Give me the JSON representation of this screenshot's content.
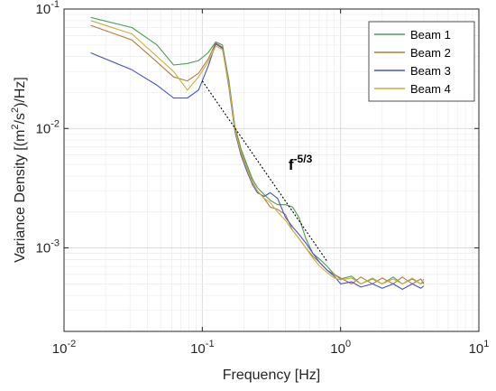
{
  "chart_data": {
    "type": "line",
    "xlabel": "Frequency [Hz]",
    "ylabel_parts": {
      "pre": "Variance Density [(m",
      "sup1": "2",
      "mid": "/s",
      "sup2": "2",
      "post": ")/Hz]"
    },
    "x_scale": "log",
    "y_scale": "log",
    "xlim": [
      0.01,
      10
    ],
    "ylim": [
      0.0002,
      0.1
    ],
    "grid": true,
    "minor_grid": true,
    "legend_position": "top-right",
    "x_ticks": [
      {
        "value": 0.01,
        "base": "10",
        "exp": "-2"
      },
      {
        "value": 0.1,
        "base": "10",
        "exp": "-1"
      },
      {
        "value": 1,
        "base": "10",
        "exp": "0"
      },
      {
        "value": 10,
        "base": "10",
        "exp": "1"
      }
    ],
    "y_ticks": [
      {
        "value": 0.001,
        "base": "10",
        "exp": "-3"
      },
      {
        "value": 0.01,
        "base": "10",
        "exp": "-2"
      },
      {
        "value": 0.1,
        "base": "10",
        "exp": "-1"
      }
    ],
    "series": [
      {
        "name": "Beam 1",
        "color": "#4f9a5b",
        "points": [
          [
            0.0156,
            0.085
          ],
          [
            0.031,
            0.07
          ],
          [
            0.047,
            0.05
          ],
          [
            0.062,
            0.034
          ],
          [
            0.078,
            0.035
          ],
          [
            0.094,
            0.037
          ],
          [
            0.11,
            0.043
          ],
          [
            0.125,
            0.053
          ],
          [
            0.14,
            0.05
          ],
          [
            0.156,
            0.025
          ],
          [
            0.172,
            0.0105
          ],
          [
            0.19,
            0.0068
          ],
          [
            0.21,
            0.005
          ],
          [
            0.23,
            0.0038
          ],
          [
            0.25,
            0.0032
          ],
          [
            0.28,
            0.0028
          ],
          [
            0.31,
            0.0025
          ],
          [
            0.35,
            0.0023
          ],
          [
            0.4,
            0.0023
          ],
          [
            0.45,
            0.0022
          ],
          [
            0.5,
            0.0018
          ],
          [
            0.56,
            0.0012
          ],
          [
            0.63,
            0.0009
          ],
          [
            0.71,
            0.0008
          ],
          [
            0.8,
            0.0007
          ],
          [
            0.9,
            0.0006
          ],
          [
            1.0,
            0.00055
          ],
          [
            1.2,
            0.00058
          ],
          [
            1.4,
            0.0005
          ],
          [
            1.7,
            0.00055
          ],
          [
            2.0,
            0.0005
          ],
          [
            2.4,
            0.00057
          ],
          [
            2.8,
            0.0005
          ],
          [
            3.3,
            0.00055
          ],
          [
            3.8,
            0.0005
          ],
          [
            4.0,
            0.00052
          ]
        ]
      },
      {
        "name": "Beam 2",
        "color": "#b07c3d",
        "points": [
          [
            0.0156,
            0.073
          ],
          [
            0.031,
            0.055
          ],
          [
            0.047,
            0.036
          ],
          [
            0.062,
            0.027
          ],
          [
            0.078,
            0.025
          ],
          [
            0.094,
            0.029
          ],
          [
            0.11,
            0.038
          ],
          [
            0.125,
            0.052
          ],
          [
            0.14,
            0.048
          ],
          [
            0.156,
            0.024
          ],
          [
            0.172,
            0.0102
          ],
          [
            0.19,
            0.0065
          ],
          [
            0.21,
            0.0047
          ],
          [
            0.23,
            0.0036
          ],
          [
            0.25,
            0.003
          ],
          [
            0.28,
            0.0026
          ],
          [
            0.31,
            0.0022
          ],
          [
            0.35,
            0.0021
          ],
          [
            0.4,
            0.0019
          ],
          [
            0.45,
            0.0014
          ],
          [
            0.5,
            0.0012
          ],
          [
            0.56,
            0.001
          ],
          [
            0.63,
            0.00085
          ],
          [
            0.71,
            0.00075
          ],
          [
            0.8,
            0.00065
          ],
          [
            0.9,
            0.0006
          ],
          [
            1.0,
            0.00056
          ],
          [
            1.2,
            0.0005
          ],
          [
            1.4,
            0.00057
          ],
          [
            1.7,
            0.0005
          ],
          [
            2.0,
            0.00056
          ],
          [
            2.4,
            0.0005
          ],
          [
            2.8,
            0.00057
          ],
          [
            3.3,
            0.0005
          ],
          [
            3.8,
            0.00055
          ],
          [
            4.0,
            0.0005
          ]
        ]
      },
      {
        "name": "Beam 3",
        "color": "#4a50c7",
        "points": [
          [
            0.0156,
            0.043
          ],
          [
            0.031,
            0.031
          ],
          [
            0.047,
            0.023
          ],
          [
            0.062,
            0.018
          ],
          [
            0.078,
            0.018
          ],
          [
            0.094,
            0.021
          ],
          [
            0.11,
            0.033
          ],
          [
            0.125,
            0.051
          ],
          [
            0.14,
            0.047
          ],
          [
            0.156,
            0.022
          ],
          [
            0.172,
            0.0095
          ],
          [
            0.19,
            0.006
          ],
          [
            0.21,
            0.0044
          ],
          [
            0.23,
            0.0034
          ],
          [
            0.25,
            0.0029
          ],
          [
            0.28,
            0.0027
          ],
          [
            0.31,
            0.0029
          ],
          [
            0.35,
            0.0026
          ],
          [
            0.4,
            0.0018
          ],
          [
            0.45,
            0.0015
          ],
          [
            0.5,
            0.0013
          ],
          [
            0.56,
            0.0011
          ],
          [
            0.63,
            0.0009
          ],
          [
            0.71,
            0.00075
          ],
          [
            0.8,
            0.00065
          ],
          [
            0.9,
            0.00058
          ],
          [
            1.0,
            0.0005
          ],
          [
            1.2,
            0.00052
          ],
          [
            1.4,
            0.00047
          ],
          [
            1.7,
            0.0005
          ],
          [
            2.0,
            0.00046
          ],
          [
            2.4,
            0.0005
          ],
          [
            2.8,
            0.00045
          ],
          [
            3.3,
            0.0005
          ],
          [
            3.8,
            0.00046
          ],
          [
            4.0,
            0.00048
          ]
        ]
      },
      {
        "name": "Beam 4",
        "color": "#c7b03a",
        "points": [
          [
            0.0156,
            0.08
          ],
          [
            0.031,
            0.062
          ],
          [
            0.047,
            0.04
          ],
          [
            0.062,
            0.03
          ],
          [
            0.078,
            0.021
          ],
          [
            0.094,
            0.027
          ],
          [
            0.11,
            0.036
          ],
          [
            0.125,
            0.049
          ],
          [
            0.14,
            0.046
          ],
          [
            0.156,
            0.023
          ],
          [
            0.172,
            0.0098
          ],
          [
            0.19,
            0.0063
          ],
          [
            0.21,
            0.0046
          ],
          [
            0.23,
            0.0035
          ],
          [
            0.25,
            0.003
          ],
          [
            0.28,
            0.0026
          ],
          [
            0.31,
            0.0024
          ],
          [
            0.35,
            0.002
          ],
          [
            0.4,
            0.0017
          ],
          [
            0.45,
            0.0014
          ],
          [
            0.5,
            0.0012
          ],
          [
            0.56,
            0.001
          ],
          [
            0.63,
            0.00082
          ],
          [
            0.71,
            0.0007
          ],
          [
            0.8,
            0.00062
          ],
          [
            0.9,
            0.00056
          ],
          [
            1.0,
            0.00054
          ],
          [
            1.2,
            0.00056
          ],
          [
            1.4,
            0.0005
          ],
          [
            1.7,
            0.00056
          ],
          [
            2.0,
            0.0005
          ],
          [
            2.4,
            0.00055
          ],
          [
            2.8,
            0.0005
          ],
          [
            3.3,
            0.00056
          ],
          [
            3.8,
            0.0005
          ],
          [
            4.0,
            0.00055
          ]
        ]
      }
    ],
    "reference_line": {
      "points": [
        [
          0.1,
          0.025
        ],
        [
          0.8,
          0.00077
        ]
      ],
      "color": "#000000"
    },
    "annotation": {
      "base": "f",
      "exp": "-5/3",
      "x": 0.42,
      "y": 0.0045
    }
  }
}
